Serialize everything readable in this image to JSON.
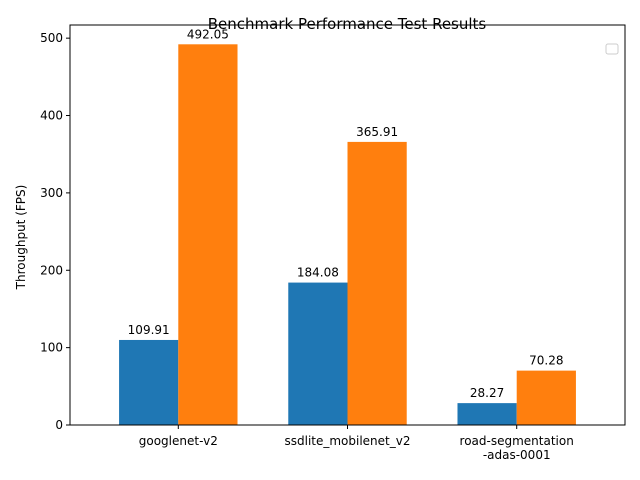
{
  "chart_data": {
    "type": "bar",
    "title": "Benchmark Performance Test Results",
    "xlabel": "",
    "ylabel": "Throughput (FPS)",
    "categories": [
      [
        "googlenet-v2"
      ],
      [
        "ssdlite_mobilenet_v2"
      ],
      [
        "road-segmentation",
        "-adas-0001"
      ]
    ],
    "series": [
      {
        "color": "#1f77b4",
        "values": [
          109.91,
          184.08,
          28.27
        ],
        "labels": [
          "109.91",
          "184.08",
          "28.27"
        ]
      },
      {
        "color": "#ff7f0e",
        "values": [
          492.05,
          365.91,
          70.28
        ],
        "labels": [
          "492.05",
          "365.91",
          "70.28"
        ]
      }
    ],
    "yticks": [
      0,
      100,
      200,
      300,
      400,
      500
    ],
    "ylim": [
      0,
      517
    ],
    "grid": false,
    "legend": {
      "position": "upper-right",
      "entries": []
    }
  }
}
